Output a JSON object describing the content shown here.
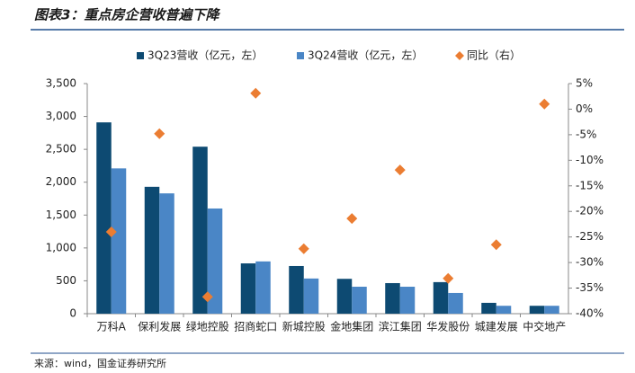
{
  "chart_data": {
    "type": "bar",
    "title": "图表3：重点房企营收普遍下降",
    "source": "来源：wind，国金证券研究所",
    "categories": [
      "万科A",
      "保利发展",
      "绿地控股",
      "招商蛇口",
      "新城控股",
      "金地集团",
      "滨江集团",
      "华发股份",
      "城建发展",
      "中交地产"
    ],
    "series": [
      {
        "name": "3Q23营收（亿元，左）",
        "color": "#0d4a72",
        "type": "bar",
        "values": [
          2910,
          1930,
          2540,
          765,
          725,
          530,
          465,
          480,
          165,
          120
        ]
      },
      {
        "name": "3Q24营收（亿元，左）",
        "color": "#4a86c6",
        "type": "bar",
        "values": [
          2210,
          1830,
          1600,
          795,
          535,
          410,
          410,
          315,
          120,
          120
        ]
      },
      {
        "name": "同比（右）",
        "color": "#eb7d32",
        "type": "scatter",
        "axis": "y2",
        "values": [
          -24.0,
          -4.8,
          -36.7,
          3.1,
          -27.3,
          -21.4,
          -11.9,
          -33.1,
          -26.5,
          1.0
        ]
      }
    ],
    "ylim": [
      0,
      3500
    ],
    "yticks": [
      0,
      500,
      {
        "value": 1000,
        "label": "1,000"
      },
      {
        "value": 1500,
        "label": "1,500"
      },
      {
        "value": 2000,
        "label": "2,000"
      },
      {
        "value": 2500,
        "label": "2,500"
      },
      {
        "value": 3000,
        "label": "3,000"
      },
      {
        "value": 3500,
        "label": "3,500"
      }
    ],
    "y2lim": [
      -40,
      5
    ],
    "y2ticks": [
      {
        "value": -40,
        "label": "-40%"
      },
      {
        "value": -35,
        "label": "-35%"
      },
      {
        "value": -30,
        "label": "-30%"
      },
      {
        "value": -25,
        "label": "-25%"
      },
      {
        "value": -20,
        "label": "-20%"
      },
      {
        "value": -15,
        "label": "-15%"
      },
      {
        "value": -10,
        "label": "-10%"
      },
      {
        "value": -5,
        "label": "-5%"
      },
      {
        "value": 0,
        "label": "0%"
      },
      {
        "value": 5,
        "label": "5%"
      }
    ]
  }
}
